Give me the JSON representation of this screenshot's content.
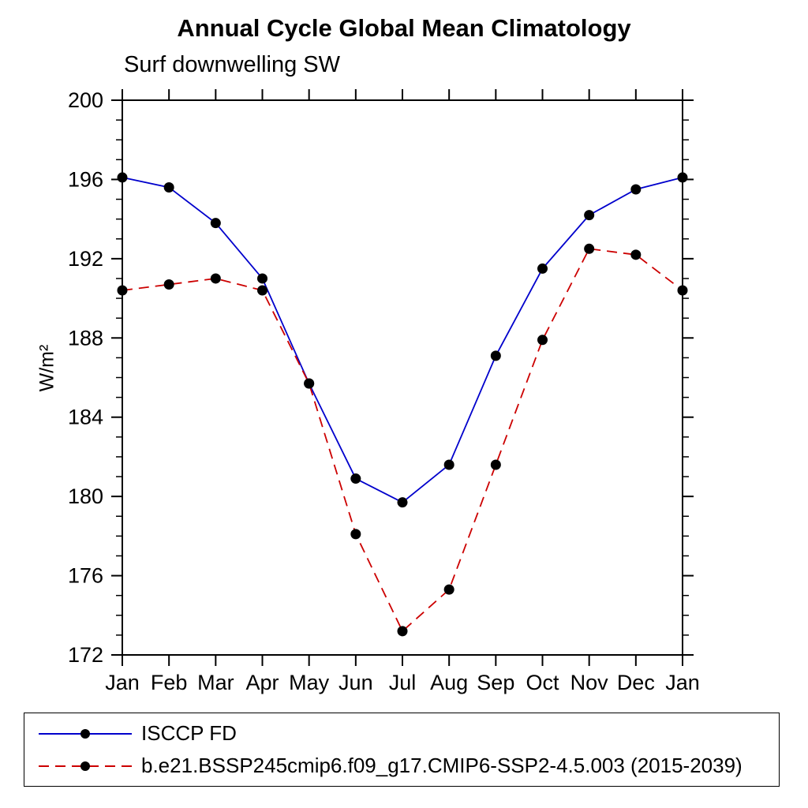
{
  "title": "Annual Cycle Global Mean Climatology",
  "subtitle": "Surf downwelling SW",
  "ylabel": "W/m²",
  "chart_data": {
    "type": "line",
    "categories": [
      "Jan",
      "Feb",
      "Mar",
      "Apr",
      "May",
      "Jun",
      "Jul",
      "Aug",
      "Sep",
      "Oct",
      "Nov",
      "Dec",
      "Jan"
    ],
    "series": [
      {
        "name": "ISCCP FD",
        "color": "#0000cc",
        "style": "solid",
        "values": [
          196.1,
          195.6,
          193.8,
          191.0,
          185.7,
          180.9,
          179.7,
          181.6,
          187.1,
          191.5,
          194.2,
          195.5,
          196.1
        ]
      },
      {
        "name": "b.e21.BSSP245cmip6.f09_g17.CMIP6-SSP2-4.5.003 (2015-2039)",
        "color": "#cc0000",
        "style": "dashed",
        "values": [
          190.4,
          190.7,
          191.0,
          190.4,
          185.7,
          178.1,
          173.2,
          175.3,
          181.6,
          187.9,
          192.5,
          192.2,
          190.4
        ]
      }
    ],
    "ylim": [
      172,
      200
    ],
    "yticks": [
      172,
      176,
      180,
      184,
      188,
      192,
      196,
      200
    ],
    "yminor": 1,
    "marker_color": "#000000",
    "axis_color": "#000000",
    "grid": false,
    "legend_position": "bottom"
  }
}
